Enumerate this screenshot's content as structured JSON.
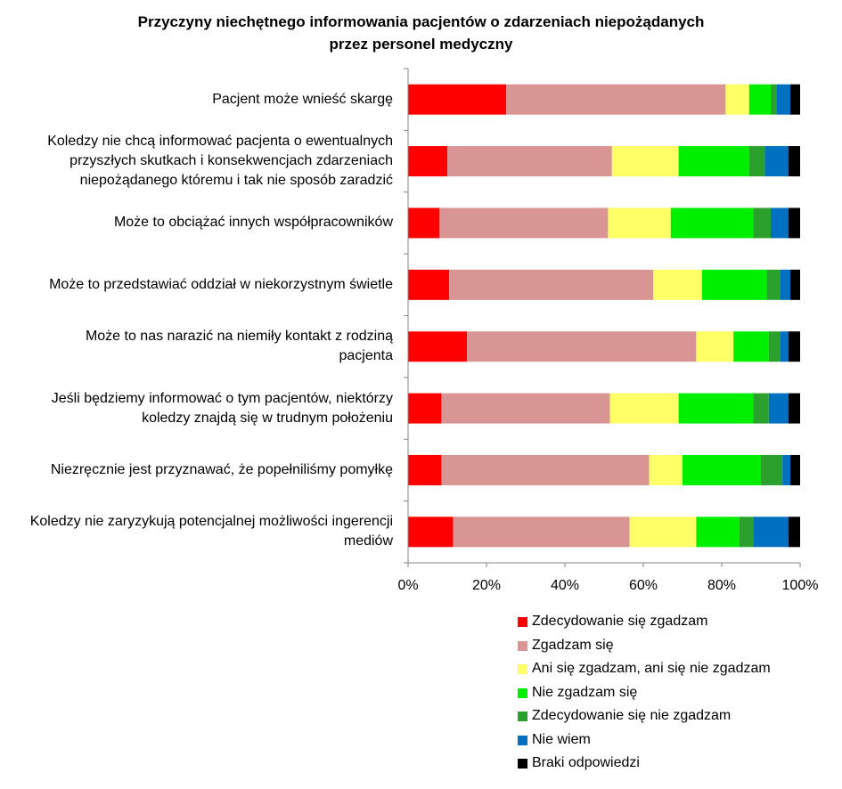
{
  "chart_data": {
    "type": "bar",
    "orientation": "horizontal",
    "stacked": "percent",
    "title": [
      "Przyczyny niechętnego informowania pacjentów o zdarzeniach niepożądanych",
      "przez personel medyczny"
    ],
    "xlabel": "",
    "ylabel": "",
    "xlim": [
      0,
      100
    ],
    "xticks": [
      "0%",
      "20%",
      "40%",
      "60%",
      "80%",
      "100%"
    ],
    "legend_position": "bottom-right",
    "grid": false,
    "categories": [
      [
        "Pacjent może wnieść skargę"
      ],
      [
        "Koledzy nie chcą informować pacjenta o ewentualnych",
        "przyszłych skutkach i konsekwencjach zdarzeniach",
        "niepożądanego któremu i tak nie sposób zaradzić"
      ],
      [
        "Może to obciążać innych współpracowników"
      ],
      [
        "Może to przedstawiać oddział w niekorzystnym świetle"
      ],
      [
        "Może to nas narazić na niemiły kontakt z rodziną",
        "pacjenta"
      ],
      [
        "Jeśli będziemy informować o tym pacjentów, niektórzy",
        "koledzy znajdą się w trudnym położeniu"
      ],
      [
        "Niezręcznie jest przyznawać, że popełniliśmy pomyłkę"
      ],
      [
        "Koledzy nie zaryzykują potencjalnej możliwości ingerencji",
        "mediów"
      ]
    ],
    "series": [
      {
        "name": "Zdecydowanie się zgadzam",
        "color": "#ff0000",
        "values": [
          25,
          10,
          8,
          10.5,
          15,
          8.5,
          8.5,
          11.5
        ]
      },
      {
        "name": "Zgadzam się",
        "color": "#d99594",
        "values": [
          56,
          42,
          43,
          52,
          58.5,
          43,
          53,
          45
        ]
      },
      {
        "name": "Ani się zgadzam, ani się nie zgadzam",
        "color": "#ffff66",
        "values": [
          6,
          17,
          16,
          12.5,
          9.5,
          17.5,
          8.5,
          17
        ]
      },
      {
        "name": "Nie zgadzam się",
        "color": "#00ee00",
        "values": [
          5.5,
          18,
          21,
          16.5,
          9,
          19,
          20,
          11
        ]
      },
      {
        "name": "Zdecydowanie się nie zgadzam",
        "color": "#2ca02c",
        "values": [
          1.5,
          4,
          4.5,
          3.5,
          3,
          4,
          5.5,
          3.5
        ]
      },
      {
        "name": "Nie wiem",
        "color": "#0070c0",
        "values": [
          3.5,
          6,
          4.5,
          2.5,
          2,
          5,
          2,
          9
        ]
      },
      {
        "name": "Braki odpowiedzi",
        "color": "#000000",
        "values": [
          2.5,
          3,
          3,
          2.5,
          3,
          3,
          2.5,
          3
        ]
      }
    ]
  }
}
